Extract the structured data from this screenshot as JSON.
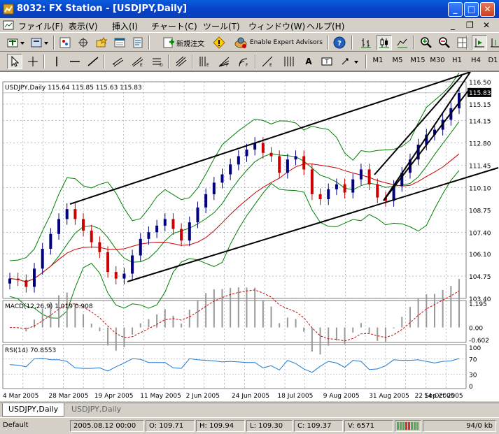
{
  "window": {
    "title": "8032: FX Station - [USDJPY,Daily]"
  },
  "menu": [
    "ファイル(F)",
    "表示(V)",
    "挿入(I)",
    "チャート(C)",
    "ツール(T)",
    "ウィンドウ(W)",
    "ヘルプ(H)"
  ],
  "toolbar": {
    "new_order": "新規注文",
    "expert_advisors": "Enable Expert Advisors"
  },
  "timeframes": [
    "M1",
    "M5",
    "M15",
    "M30",
    "H1",
    "H4",
    "D1"
  ],
  "chart": {
    "header": "USDJPY,Daily  115.64 115.85 115.63 115.83",
    "current_price": "115.83",
    "price_ticks": [
      "116.50",
      "115.15",
      "114.15",
      "112.80",
      "111.45",
      "110.10",
      "108.75",
      "107.40",
      "106.10",
      "104.75",
      "103.40"
    ],
    "macd_label": "MACD(12,26,9) 1.019 0.908",
    "macd_ticks": [
      "1.195",
      "0.00",
      "-0.602"
    ],
    "rsi_label": "RSI(14) 70.8553",
    "rsi_ticks": [
      "100",
      "70",
      "30",
      "0"
    ],
    "date_ticks": [
      "4 Mar 2005",
      "28 Mar 2005",
      "19 Apr 2005",
      "11 May 2005",
      "2 Jun 2005",
      "24 Jun 2005",
      "18 Jul 2005",
      "9 Aug 2005",
      "31 Aug 2005",
      "22 Sep 2005",
      "14 Oct 2005"
    ],
    "colors": {
      "bull": "#000080",
      "bear": "#cc0000",
      "bollinger": "#008000",
      "ma": "#cc0000",
      "macd_line": "#cc0000",
      "rsi_line": "#1e78d2",
      "grid": "#8899aa"
    }
  },
  "chart_data": {
    "type": "line",
    "title": "USDJPY,Daily",
    "series": [
      {
        "name": "USDJPY,Daily",
        "close": [
          104.6,
          104.5,
          104.1,
          105.2,
          106.4,
          107.3,
          108.2,
          108.8,
          108.2,
          107.5,
          106.8,
          106.2,
          105.0,
          104.6,
          104.9,
          106.0,
          107.0,
          107.4,
          107.8,
          108.2,
          107.6,
          106.9,
          108.0,
          108.9,
          109.7,
          110.4,
          110.9,
          111.5,
          112.0,
          112.4,
          112.8,
          112.2,
          112.0,
          111.0,
          111.8,
          112.0,
          111.2,
          109.7,
          109.4,
          110.0,
          110.3,
          109.8,
          110.6,
          111.2,
          110.3,
          109.5,
          109.3,
          110.2,
          111.0,
          111.8,
          112.7,
          113.3,
          113.6,
          114.2,
          114.9,
          115.83
        ]
      }
    ],
    "indicators": {
      "macd": {
        "params": "12,26,9",
        "main": 1.019,
        "signal": 0.908,
        "ylim": [
          -0.602,
          1.195
        ]
      },
      "rsi": {
        "period": 14,
        "value": 70.8553,
        "levels": [
          30,
          70
        ]
      }
    },
    "ylim": [
      103.4,
      116.5
    ]
  },
  "tabs": [
    "USDJPY,Daily",
    "USDJPY,Daily"
  ],
  "status": {
    "profile": "Default",
    "datetime": "2005.08.12 00:00",
    "open": "O: 109.71",
    "high": "H: 109.94",
    "low": "L: 109.30",
    "close": "C: 109.37",
    "volume": "V: 6571",
    "traffic": "94/0 kb"
  }
}
